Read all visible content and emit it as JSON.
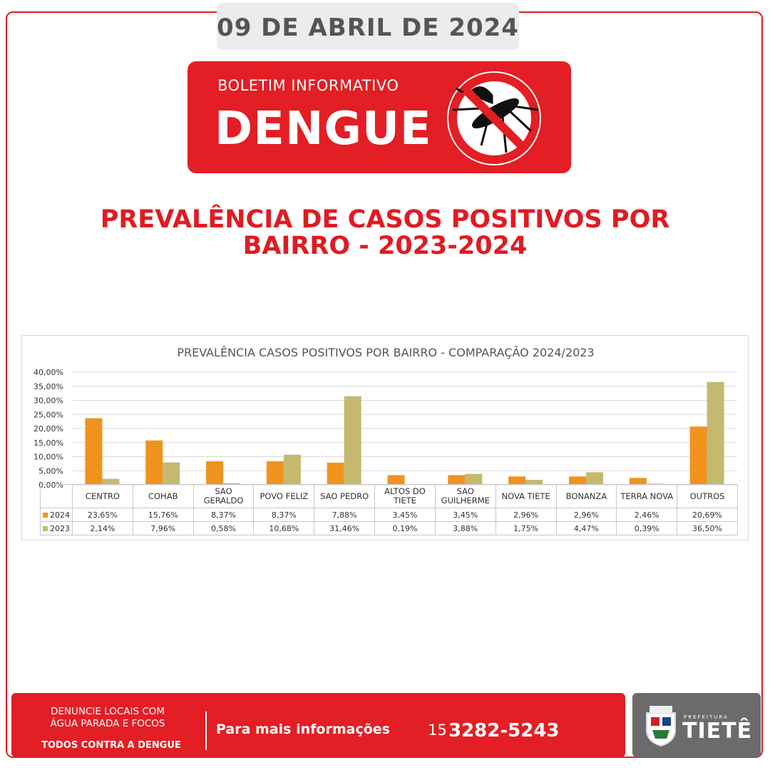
{
  "header": {
    "date": "09 DE ABRIL DE 2024",
    "kicker": "BOLETIM INFORMATIVO",
    "title": "DENGUE",
    "headline": "PREVALÊNCIA DE CASOS POSITIVOS POR BAIRRO - 2023-2024"
  },
  "chart_data": {
    "type": "bar",
    "title": "PREVALÊNCIA CASOS POSITIVOS POR BAIRRO - COMPARAÇÃO 2024/2023",
    "categories": [
      "CENTRO",
      "COHAB",
      "SAO GERALDO",
      "POVO FELIZ",
      "SAO PEDRO",
      "ALTOS DO TIETE",
      "SAO GUILHERME",
      "NOVA TIETE",
      "BONANZA",
      "TERRA NOVA",
      "OUTROS"
    ],
    "series": [
      {
        "name": "2024",
        "color": "#f0931e",
        "values": [
          23.65,
          15.76,
          8.37,
          8.37,
          7.88,
          3.45,
          3.45,
          2.96,
          2.96,
          2.46,
          20.69
        ],
        "value_labels": [
          "23,65%",
          "15,76%",
          "8,37%",
          "8,37%",
          "7,88%",
          "3,45%",
          "3,45%",
          "2,96%",
          "2,96%",
          "2,46%",
          "20,69%"
        ]
      },
      {
        "name": "2023",
        "color": "#c4b96f",
        "values": [
          2.14,
          7.96,
          0.58,
          10.68,
          31.46,
          0.19,
          3.88,
          1.75,
          4.47,
          0.39,
          36.5
        ],
        "value_labels": [
          "2,14%",
          "7,96%",
          "0,58%",
          "10,68%",
          "31,46%",
          "0,19%",
          "3,88%",
          "1,75%",
          "4,47%",
          "0,39%",
          "36,50%"
        ]
      }
    ],
    "ylim": [
      0,
      40
    ],
    "yticks": [
      {
        "value": 0,
        "label": "0,00%"
      },
      {
        "value": 5,
        "label": "5,00%"
      },
      {
        "value": 10,
        "label": "10,00%"
      },
      {
        "value": 15,
        "label": "15,00%"
      },
      {
        "value": 20,
        "label": "20,00%"
      },
      {
        "value": 25,
        "label": "25,00%"
      },
      {
        "value": 30,
        "label": "30,00%"
      },
      {
        "value": 35,
        "label": "35,00%"
      },
      {
        "value": 40,
        "label": "40,00%"
      }
    ],
    "grid": true
  },
  "footer": {
    "notice": "DENUNCIE LOCAIS COM ÁGUA PARADA E FOCOS",
    "slogan": "TODOS CONTRA A DENGUE",
    "info": "Para mais informações",
    "area_code": "15",
    "phone": "3282-5243",
    "logo_kicker": "PREFEITURA",
    "logo_name": "TIETÊ"
  }
}
